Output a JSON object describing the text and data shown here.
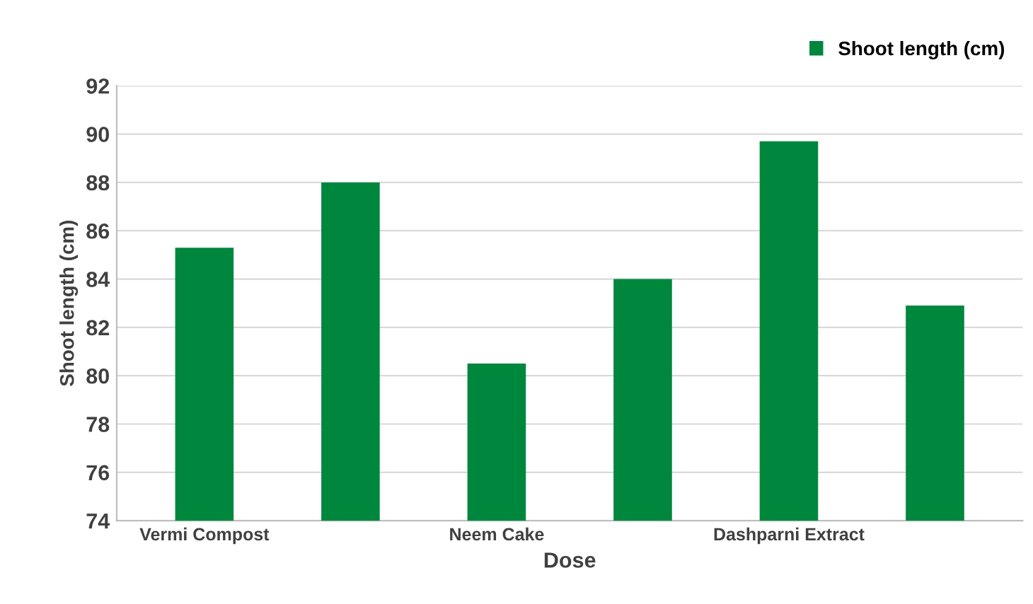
{
  "chart_data": {
    "type": "bar",
    "xlabel": "Dose",
    "ylabel": "Shoot length (cm)",
    "categories": [
      "Vermi Compost",
      null,
      "Neem Cake",
      null,
      "Dashparni Extract",
      null
    ],
    "series": [
      {
        "name": "Shoot length (cm)",
        "color": "#00873e",
        "values": [
          85.3,
          88.0,
          80.5,
          84.0,
          89.7,
          82.9
        ]
      }
    ],
    "ylim": [
      74,
      92
    ],
    "yticks": [
      74,
      76,
      78,
      80,
      82,
      84,
      86,
      88,
      90,
      92
    ],
    "grid": "y",
    "legend": "top right"
  }
}
